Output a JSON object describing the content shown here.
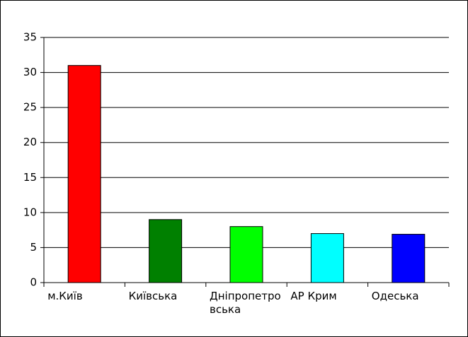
{
  "chart_data": {
    "type": "bar",
    "categories": [
      "м.Київ",
      "Київська",
      "Дніпропетровська",
      "АР Крим",
      "Одеська"
    ],
    "values": [
      31,
      9,
      8,
      7,
      6.9
    ],
    "colors": [
      "#ff0000",
      "#008000",
      "#00ff00",
      "#00ffff",
      "#0000ff"
    ],
    "ylim": [
      0,
      35
    ],
    "yticks": [
      0,
      5,
      10,
      15,
      20,
      25,
      30,
      35
    ],
    "grid": true
  }
}
